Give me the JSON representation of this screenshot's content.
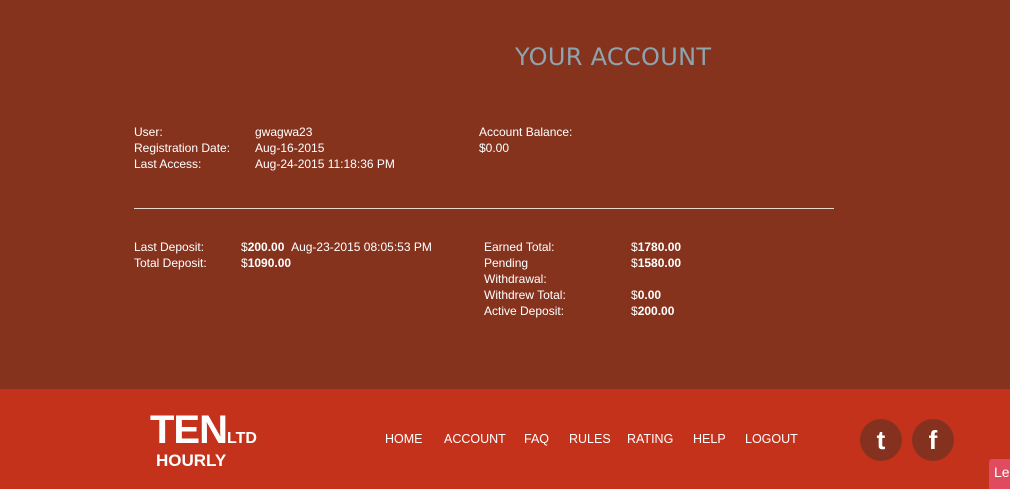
{
  "header": {
    "title": "YOUR ACCOUNT"
  },
  "account": {
    "user_label": "User:",
    "user": "gwagwa23",
    "reg_label": "Registration Date:",
    "reg_date": "Aug-16-2015",
    "access_label": "Last Access:",
    "last_access": "Aug-24-2015 11:18:36 PM",
    "balance_label": "Account Balance:",
    "balance": "$0.00"
  },
  "deposits": {
    "last_label": "Last Deposit:",
    "last_currency": "$",
    "last_amount": "200.00",
    "last_date": "Aug-23-2015 08:05:53 PM",
    "total_label": "Total Deposit:",
    "total_currency": "$",
    "total_amount": "1090.00"
  },
  "totals": [
    {
      "label": "Earned Total:",
      "currency": "$",
      "amount": "1780.00"
    },
    {
      "label": "Pending Withdrawal:",
      "currency": "$",
      "amount": "1580.00"
    },
    {
      "label": "Withdrew Total:",
      "currency": "$",
      "amount": "0.00"
    },
    {
      "label": "Active Deposit:",
      "currency": "$",
      "amount": "200.00"
    }
  ],
  "footer": {
    "logo": {
      "main": "TEN",
      "suffix": "LTD",
      "sub": "HOURLY"
    },
    "nav": [
      "HOME",
      "ACCOUNT",
      "FAQ",
      "RULES",
      "RATING",
      "HELP",
      "LOGOUT"
    ],
    "social": [
      {
        "icon": "twitter-icon",
        "glyph": "t"
      },
      {
        "icon": "facebook-icon",
        "glyph": "f"
      }
    ],
    "chat_label": "Le"
  },
  "colors": {
    "background": "#86331e",
    "footer": "#c4321b",
    "title": "#8ea4ae"
  }
}
